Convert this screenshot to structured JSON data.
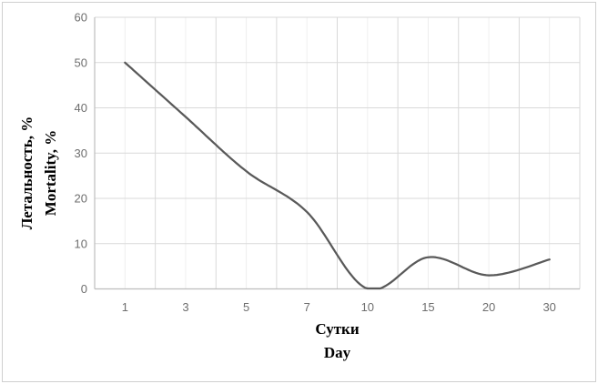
{
  "chart_data": {
    "type": "line",
    "title": "",
    "categories": [
      "1",
      "3",
      "5",
      "7",
      "10",
      "15",
      "20",
      "30"
    ],
    "values": [
      50,
      38,
      26,
      17,
      0,
      7,
      3,
      6.5
    ],
    "series": [
      {
        "name": "Mortality, %",
        "values": [
          50,
          38,
          26,
          17,
          0,
          7,
          3,
          6.5
        ]
      }
    ],
    "xlabel_lines": [
      "Сутки",
      "Day"
    ],
    "ylabel_lines": [
      "Летальность, %",
      "Mortality, %"
    ],
    "y_ticks": [
      "0",
      "10",
      "20",
      "30",
      "40",
      "50",
      "60"
    ],
    "ylim": [
      0,
      60
    ],
    "y_tick_step": 10,
    "grid": "horizontal-major, vertical-major-and-minor",
    "legend_position": "none",
    "smooth": true
  },
  "style": {
    "line_color": "#595959",
    "major_grid_color": "#d9d9d9",
    "minor_grid_color": "#eeeeee",
    "axis_color": "#bdbdbd",
    "tick_label_color": "#6e6e6e",
    "title_color": "#000000",
    "border_color": "#cfcfcf",
    "background": "#ffffff"
  }
}
